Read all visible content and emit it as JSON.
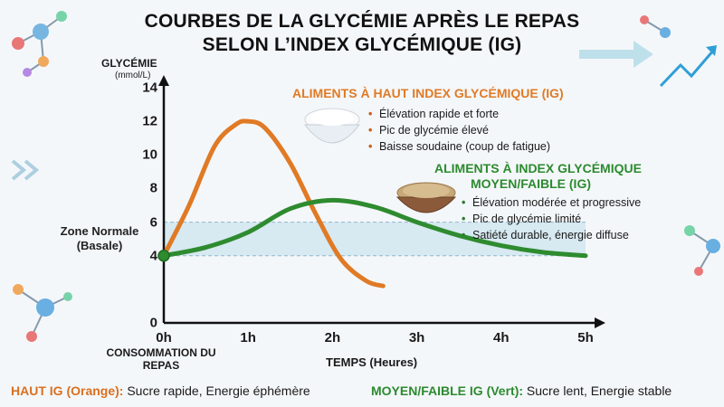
{
  "title_line1": "COURBES DE LA GLYCÉMIE APRÈS LE REPAS",
  "title_line2": "SELON L’INDEX GLYCÉMIQUE (IG)",
  "colors": {
    "high": "#e07a25",
    "low": "#2e8b2f",
    "zone": "#cde4ee",
    "axis": "#111111"
  },
  "chart_data": {
    "type": "line",
    "ylabel": "GLYCÉMIE",
    "yunit": "(mmol/L)",
    "xlabel": "TEMPS (Heures)",
    "xlim": [
      0,
      5
    ],
    "ylim": [
      0,
      14
    ],
    "xticks": [
      "0h",
      "1h",
      "2h",
      "3h",
      "4h",
      "5h"
    ],
    "yticks": [
      0,
      4,
      6,
      8,
      10,
      12,
      14
    ],
    "x0_note": "CONSOMMATION DU REPAS",
    "normal_zone": {
      "label": "Zone Normale (Basale)",
      "from": 4,
      "to": 6
    },
    "series": [
      {
        "name": "ALIMENTS À HAUT INDEX GLYCÉMIQUE (IG)",
        "color": "#e07a25",
        "x": [
          0,
          0.3,
          0.6,
          0.85,
          1.0,
          1.2,
          1.5,
          1.8,
          2.1,
          2.4,
          2.6
        ],
        "y": [
          4.0,
          7.0,
          10.5,
          11.8,
          12.0,
          11.6,
          9.5,
          6.5,
          3.8,
          2.5,
          2.2
        ]
      },
      {
        "name": "ALIMENTS À INDEX GLYCÉMIQUE MOYEN/FAIBLE (IG)",
        "color": "#2e8b2f",
        "x": [
          0,
          0.5,
          1.0,
          1.5,
          2.0,
          2.5,
          3.0,
          3.5,
          4.0,
          4.5,
          5.0
        ],
        "y": [
          4.0,
          4.5,
          5.4,
          6.8,
          7.3,
          6.9,
          6.0,
          5.2,
          4.6,
          4.2,
          4.0
        ]
      }
    ]
  },
  "high_annotation": {
    "title": "ALIMENTS À HAUT INDEX GLYCÉMIQUE (IG)",
    "items": [
      "Élévation rapide et forte",
      "Pic de glycémie élevé",
      "Baisse soudaine (coup de fatigue)"
    ]
  },
  "low_annotation": {
    "title_line1": "ALIMENTS À INDEX GLYCÉMIQUE",
    "title_line2": "MOYEN/FAIBLE (IG)",
    "items": [
      "Élévation modérée et progressive",
      "Pic de glycémie limité",
      "Satiété durable, énergie diffuse"
    ]
  },
  "footer": {
    "high_key": "HAUT IG (Orange):",
    "high_desc": "Sucre rapide, Energie éphémère",
    "low_key": "MOYEN/FAIBLE IG (Vert):",
    "low_desc": "Sucre lent, Energie stable"
  },
  "icons": [
    "molecule-icon",
    "arrow-right-icon",
    "trend-up-icon",
    "chevrons-icon",
    "white-rice-bowl-icon",
    "brown-rice-bowl-icon"
  ]
}
